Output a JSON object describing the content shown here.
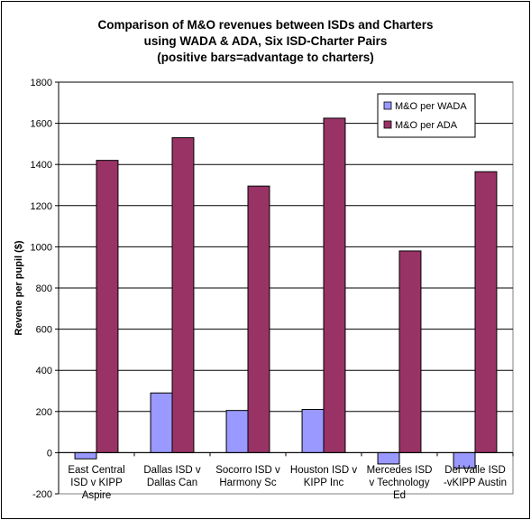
{
  "chart_data": {
    "type": "bar",
    "title_lines": [
      "Comparison of M&O revenues between ISDs and Charters",
      "using WADA & ADA, Six ISD-Charter Pairs",
      "(positive bars=advantage to charters)"
    ],
    "ylabel": "Revene per pupil ($)",
    "xlabel": "",
    "ylim": [
      -200,
      1800
    ],
    "yticks": [
      -200,
      0,
      200,
      400,
      600,
      800,
      1000,
      1200,
      1400,
      1600,
      1800
    ],
    "grid": true,
    "legend_position": "top-right",
    "categories": [
      [
        "East Central",
        "ISD v KIPP",
        "Aspire"
      ],
      [
        "Dallas ISD v",
        "Dallas Can"
      ],
      [
        "Socorro ISD v",
        "Harmony Sc"
      ],
      [
        "Houston ISD v",
        "KIPP Inc"
      ],
      [
        "Mercedes ISD",
        "v Technology",
        "Ed"
      ],
      [
        "Del Valle ISD",
        "-vKIPP Austin"
      ]
    ],
    "series": [
      {
        "name": "M&O per WADA",
        "color": "#9999ff",
        "values": [
          -30,
          290,
          205,
          210,
          -55,
          -75
        ]
      },
      {
        "name": "M&O per ADA",
        "color": "#993366",
        "values": [
          1420,
          1530,
          1295,
          1625,
          980,
          1365
        ]
      }
    ]
  }
}
